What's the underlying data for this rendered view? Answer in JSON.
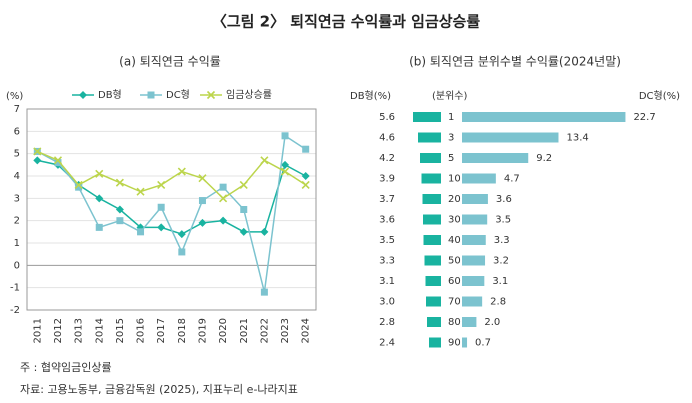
{
  "title": "〈그림 2〉 퇴직연금 수익률과 임금상승률",
  "chart_data": [
    {
      "type": "line",
      "title": "(a) 퇴직연금 수익률",
      "y_label": "(%)",
      "categories": [
        "2011",
        "2012",
        "2013",
        "2014",
        "2015",
        "2016",
        "2017",
        "2018",
        "2019",
        "2020",
        "2021",
        "2022",
        "2023",
        "2024"
      ],
      "ylim": [
        -2,
        7
      ],
      "yticks": [
        -2,
        -1,
        0,
        1,
        2,
        3,
        4,
        5,
        6,
        7
      ],
      "grid": true,
      "series": [
        {
          "name": "DB형",
          "color": "#19b3a0",
          "marker": "diamond",
          "values": [
            4.7,
            4.5,
            3.6,
            3.0,
            2.5,
            1.7,
            1.7,
            1.4,
            1.9,
            2.0,
            1.5,
            1.5,
            4.5,
            4.0
          ]
        },
        {
          "name": "DC형",
          "color": "#7cc3cf",
          "marker": "square",
          "values": [
            5.1,
            4.6,
            3.5,
            1.7,
            2.0,
            1.5,
            2.6,
            0.6,
            2.9,
            3.5,
            2.5,
            -1.2,
            5.8,
            5.2
          ]
        },
        {
          "name": "임금상승률",
          "color": "#bcd54c",
          "marker": "x",
          "values": [
            5.1,
            4.7,
            3.6,
            4.1,
            3.7,
            3.3,
            3.6,
            4.2,
            3.9,
            3.0,
            3.6,
            4.7,
            4.2,
            3.6
          ]
        }
      ]
    },
    {
      "type": "diverging-bar",
      "title": "(b) 퇴직연금 분위수별 수익률(2024년말)",
      "category_label": "(분위수)",
      "categories": [
        "1",
        "3",
        "5",
        "10",
        "20",
        "30",
        "40",
        "50",
        "60",
        "70",
        "80",
        "90"
      ],
      "series": [
        {
          "name": "DB형(%)",
          "color": "#19b3a0",
          "side": "left",
          "values": [
            5.6,
            4.6,
            4.2,
            3.9,
            3.7,
            3.6,
            3.5,
            3.3,
            3.1,
            3.0,
            2.8,
            2.4
          ],
          "value_labels": [
            "5.6",
            "4.6",
            "4.2",
            "3.9",
            "3.7",
            "3.6",
            "3.5",
            "3.3",
            "3.1",
            "3.0",
            "2.8",
            "2.4"
          ]
        },
        {
          "name": "DC형(%)",
          "color": "#7cc3cf",
          "side": "right",
          "values": [
            22.7,
            13.4,
            9.2,
            4.7,
            3.6,
            3.5,
            3.3,
            3.2,
            3.1,
            2.8,
            2.0,
            0.7
          ],
          "value_labels": [
            "22.7",
            "13.4",
            "9.2",
            "4.7",
            "3.6",
            "3.5",
            "3.3",
            "3.2",
            "3.1",
            "2.8",
            "2.0",
            "0.7"
          ]
        }
      ]
    }
  ],
  "notes": [
    "주 : 협약임금인상률",
    "자료: 고용노동부, 금융감독원 (2025), 지표누리 e-나라지표"
  ]
}
